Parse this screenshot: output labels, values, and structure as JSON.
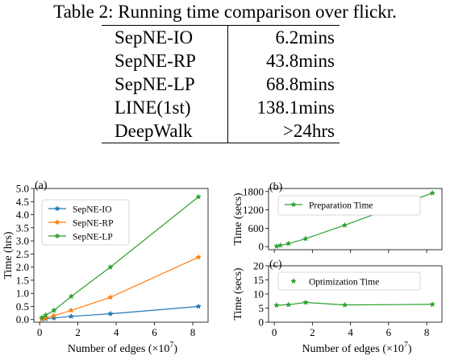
{
  "table": {
    "caption": "Table 2: Running time comparison over flickr.",
    "rows": [
      {
        "method": "SepNE-IO",
        "time": "6.2mins"
      },
      {
        "method": "SepNE-RP",
        "time": "43.8mins"
      },
      {
        "method": "SepNE-LP",
        "time": "68.8mins"
      },
      {
        "method": "LINE(1st)",
        "time": "138.1mins"
      },
      {
        "method": "DeepWalk",
        "time": ">24hrs"
      }
    ]
  },
  "chart_data": [
    {
      "type": "line",
      "panel_label": "(a)",
      "xlabel": "Number of edges (×10",
      "xlabel_exp": "7",
      "xlabel_close": ")",
      "ylabel": "Time (hrs)",
      "xlim": [
        -0.3,
        8.8
      ],
      "ylim": [
        -0.1,
        5.0
      ],
      "xticks": [
        "0",
        "2",
        "4",
        "6",
        "8"
      ],
      "yticks": [
        "0.0",
        "0.5",
        "1.0",
        "1.5",
        "2.0",
        "2.5",
        "3.0",
        "3.5",
        "4.0",
        "4.5",
        "5.0"
      ],
      "legend_position": "top-left",
      "series": [
        {
          "name": "SepNE-IO",
          "color": "#1f77b4",
          "marker": "star",
          "x": [
            0.12,
            0.32,
            0.75,
            1.65,
            3.7,
            8.3
          ],
          "y": [
            0.01,
            0.03,
            0.06,
            0.12,
            0.22,
            0.5
          ]
        },
        {
          "name": "SepNE-RP",
          "color": "#ff7f0e",
          "marker": "star",
          "x": [
            0.12,
            0.32,
            0.75,
            1.65,
            3.7,
            8.3
          ],
          "y": [
            0.02,
            0.06,
            0.15,
            0.35,
            0.85,
            2.38
          ]
        },
        {
          "name": "SepNE-LP",
          "color": "#2ca02c",
          "marker": "star",
          "x": [
            0.12,
            0.32,
            0.75,
            1.65,
            3.7,
            8.3
          ],
          "y": [
            0.08,
            0.17,
            0.35,
            0.88,
            2.0,
            4.68
          ]
        }
      ]
    },
    {
      "type": "line",
      "panel_label": "(b)",
      "ylabel": "Time (secs)",
      "xlim": [
        -0.3,
        8.8
      ],
      "ylim": [
        -100,
        1900
      ],
      "xticks": [],
      "yticks": [
        "0",
        "600",
        "1200",
        "1800"
      ],
      "legend_position": "top-left",
      "series": [
        {
          "name": "Preparation Time",
          "color": "#2ca02c",
          "marker": "star",
          "x": [
            0.12,
            0.32,
            0.75,
            1.65,
            3.7,
            8.3
          ],
          "y": [
            10,
            40,
            100,
            260,
            700,
            1750
          ]
        }
      ]
    },
    {
      "type": "line",
      "panel_label": "(c)",
      "xlabel": "Number of edges (×10",
      "xlabel_exp": "7",
      "xlabel_close": ")",
      "ylabel": "Time (secs)",
      "xlim": [
        -0.3,
        8.8
      ],
      "ylim": [
        0,
        20
      ],
      "xticks": [
        "0",
        "2",
        "4",
        "6",
        "8"
      ],
      "yticks": [
        "0",
        "5",
        "10",
        "15",
        "20"
      ],
      "legend_position": "top-left",
      "series": [
        {
          "name": "Optimization Time",
          "color": "#2ca02c",
          "marker": "star",
          "x": [
            0.12,
            0.75,
            1.65,
            3.7,
            8.3
          ],
          "y": [
            6.0,
            6.2,
            7.0,
            6.1,
            6.3
          ]
        }
      ]
    }
  ]
}
